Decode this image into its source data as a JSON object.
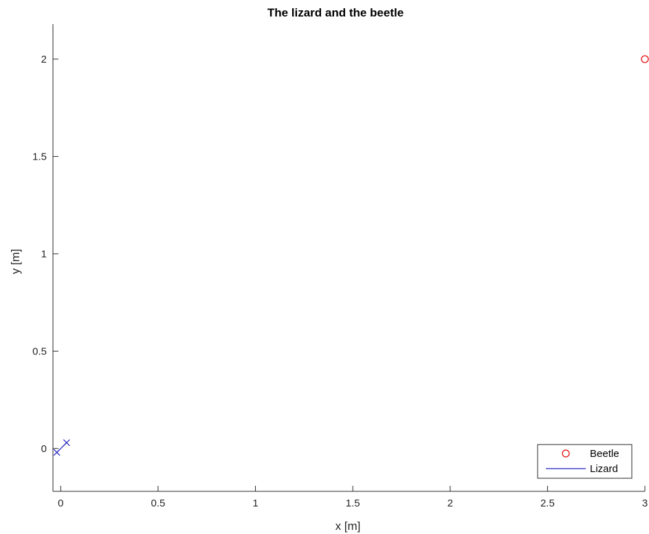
{
  "chart_data": {
    "type": "scatter",
    "title": "The lizard and the beetle",
    "xlabel": "x [m]",
    "ylabel": "y [m]",
    "xlim": [
      -0.04,
      3.0
    ],
    "ylim": [
      -0.22,
      2.18
    ],
    "grid": false,
    "xticks": [
      0,
      0.5,
      1,
      1.5,
      2,
      2.5,
      3
    ],
    "xtick_labels": [
      "0",
      "0.5",
      "1",
      "1.5",
      "2",
      "2.5",
      "3"
    ],
    "yticks": [
      0,
      0.5,
      1,
      1.5,
      2
    ],
    "ytick_labels": [
      "0",
      "0.5",
      "1",
      "1.5",
      "2"
    ],
    "legend_position": "bottom-right",
    "series": [
      {
        "name": "Beetle",
        "kind": "markers",
        "marker": "circle",
        "color": "#e00000",
        "x": [
          3.0
        ],
        "y": [
          2.0
        ]
      },
      {
        "name": "Lizard",
        "kind": "line",
        "color": "#1f1fbf",
        "x": [
          -0.02,
          0.03
        ],
        "y": [
          -0.02,
          0.03
        ]
      },
      {
        "kind": "markers",
        "marker": "x",
        "color": "#1f1fbf",
        "x": [
          -0.02,
          0.03
        ],
        "y": [
          -0.02,
          0.03
        ]
      }
    ]
  }
}
